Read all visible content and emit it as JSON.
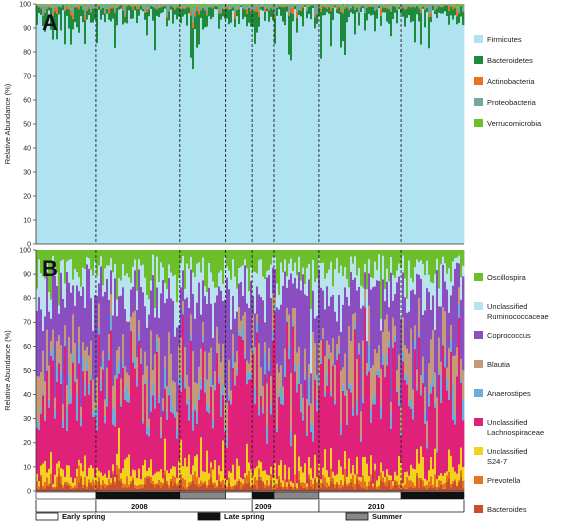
{
  "chart_data": [
    {
      "panel": "A",
      "type": "area",
      "ylabel": "Relative Abundance (%)",
      "ylim": [
        0,
        100
      ],
      "yticks": [
        0,
        10,
        20,
        30,
        40,
        50,
        60,
        70,
        80,
        90,
        100
      ],
      "legend_position": "right",
      "series": [
        {
          "name": "Firmicutes",
          "color": "#aee3ef",
          "mean_abundance": 94
        },
        {
          "name": "Bacteroidetes",
          "color": "#1e8a3c",
          "mean_abundance": 4
        },
        {
          "name": "Actinobacteria",
          "color": "#e8731d",
          "mean_abundance": 0.5
        },
        {
          "name": "Proteobacteria",
          "color": "#6fa8a2",
          "mean_abundance": 1
        },
        {
          "name": "Verrucomicrobia",
          "color": "#6cbf2a",
          "mean_abundance": 0.3
        }
      ]
    },
    {
      "panel": "B",
      "type": "area",
      "ylabel": "Relative Abundance (%)",
      "ylim": [
        0,
        100
      ],
      "yticks": [
        0,
        10,
        20,
        30,
        40,
        50,
        60,
        70,
        80,
        90,
        100
      ],
      "legend_position": "right",
      "series": [
        {
          "name": "Bacteroides",
          "color": "#c8502a",
          "mean_abundance": 2
        },
        {
          "name": "Prevotella",
          "color": "#e8731d",
          "mean_abundance": 1.5
        },
        {
          "name": "Unclassified S24-7",
          "color": "#f2d21a",
          "mean_abundance": 4
        },
        {
          "name": "Unclassified Lachnospiraceae",
          "color": "#e0217a",
          "mean_abundance": 28
        },
        {
          "name": "Anaerostipes",
          "color": "#67aedb",
          "mean_abundance": 3
        },
        {
          "name": "Blautia",
          "color": "#c59a78",
          "mean_abundance": 9
        },
        {
          "name": "Coprococcus",
          "color": "#8a4ec0",
          "mean_abundance": 20
        },
        {
          "name": "Unclassified Ruminococcaceae",
          "color": "#b9e3ef",
          "mean_abundance": 8
        },
        {
          "name": "Oscillospira",
          "color": "#6cbf2a",
          "mean_abundance": 7
        }
      ]
    }
  ],
  "timeline": {
    "years": [
      "2008",
      "2009",
      "2010"
    ],
    "segments": [
      {
        "season": "Early spring",
        "start": 0.0,
        "end": 0.14
      },
      {
        "season": "Late spring",
        "start": 0.14,
        "end": 0.336
      },
      {
        "season": "Summer",
        "start": 0.336,
        "end": 0.443
      },
      {
        "season": "Early spring",
        "start": 0.443,
        "end": 0.505
      },
      {
        "season": "Late spring",
        "start": 0.505,
        "end": 0.556
      },
      {
        "season": "Summer",
        "start": 0.556,
        "end": 0.661
      },
      {
        "season": "Early spring",
        "start": 0.661,
        "end": 0.853
      },
      {
        "season": "Late spring",
        "start": 0.853,
        "end": 1.0
      }
    ],
    "season_boundaries": [
      0.14,
      0.336,
      0.443,
      0.505,
      0.556,
      0.661,
      0.853
    ],
    "year_dividers": [
      0.14,
      0.505,
      0.661
    ]
  },
  "season_legend": [
    {
      "label": "Early spring",
      "color": "#ffffff"
    },
    {
      "label": "Late spring",
      "color": "#111111"
    },
    {
      "label": "Summer",
      "color": "#888888"
    }
  ]
}
